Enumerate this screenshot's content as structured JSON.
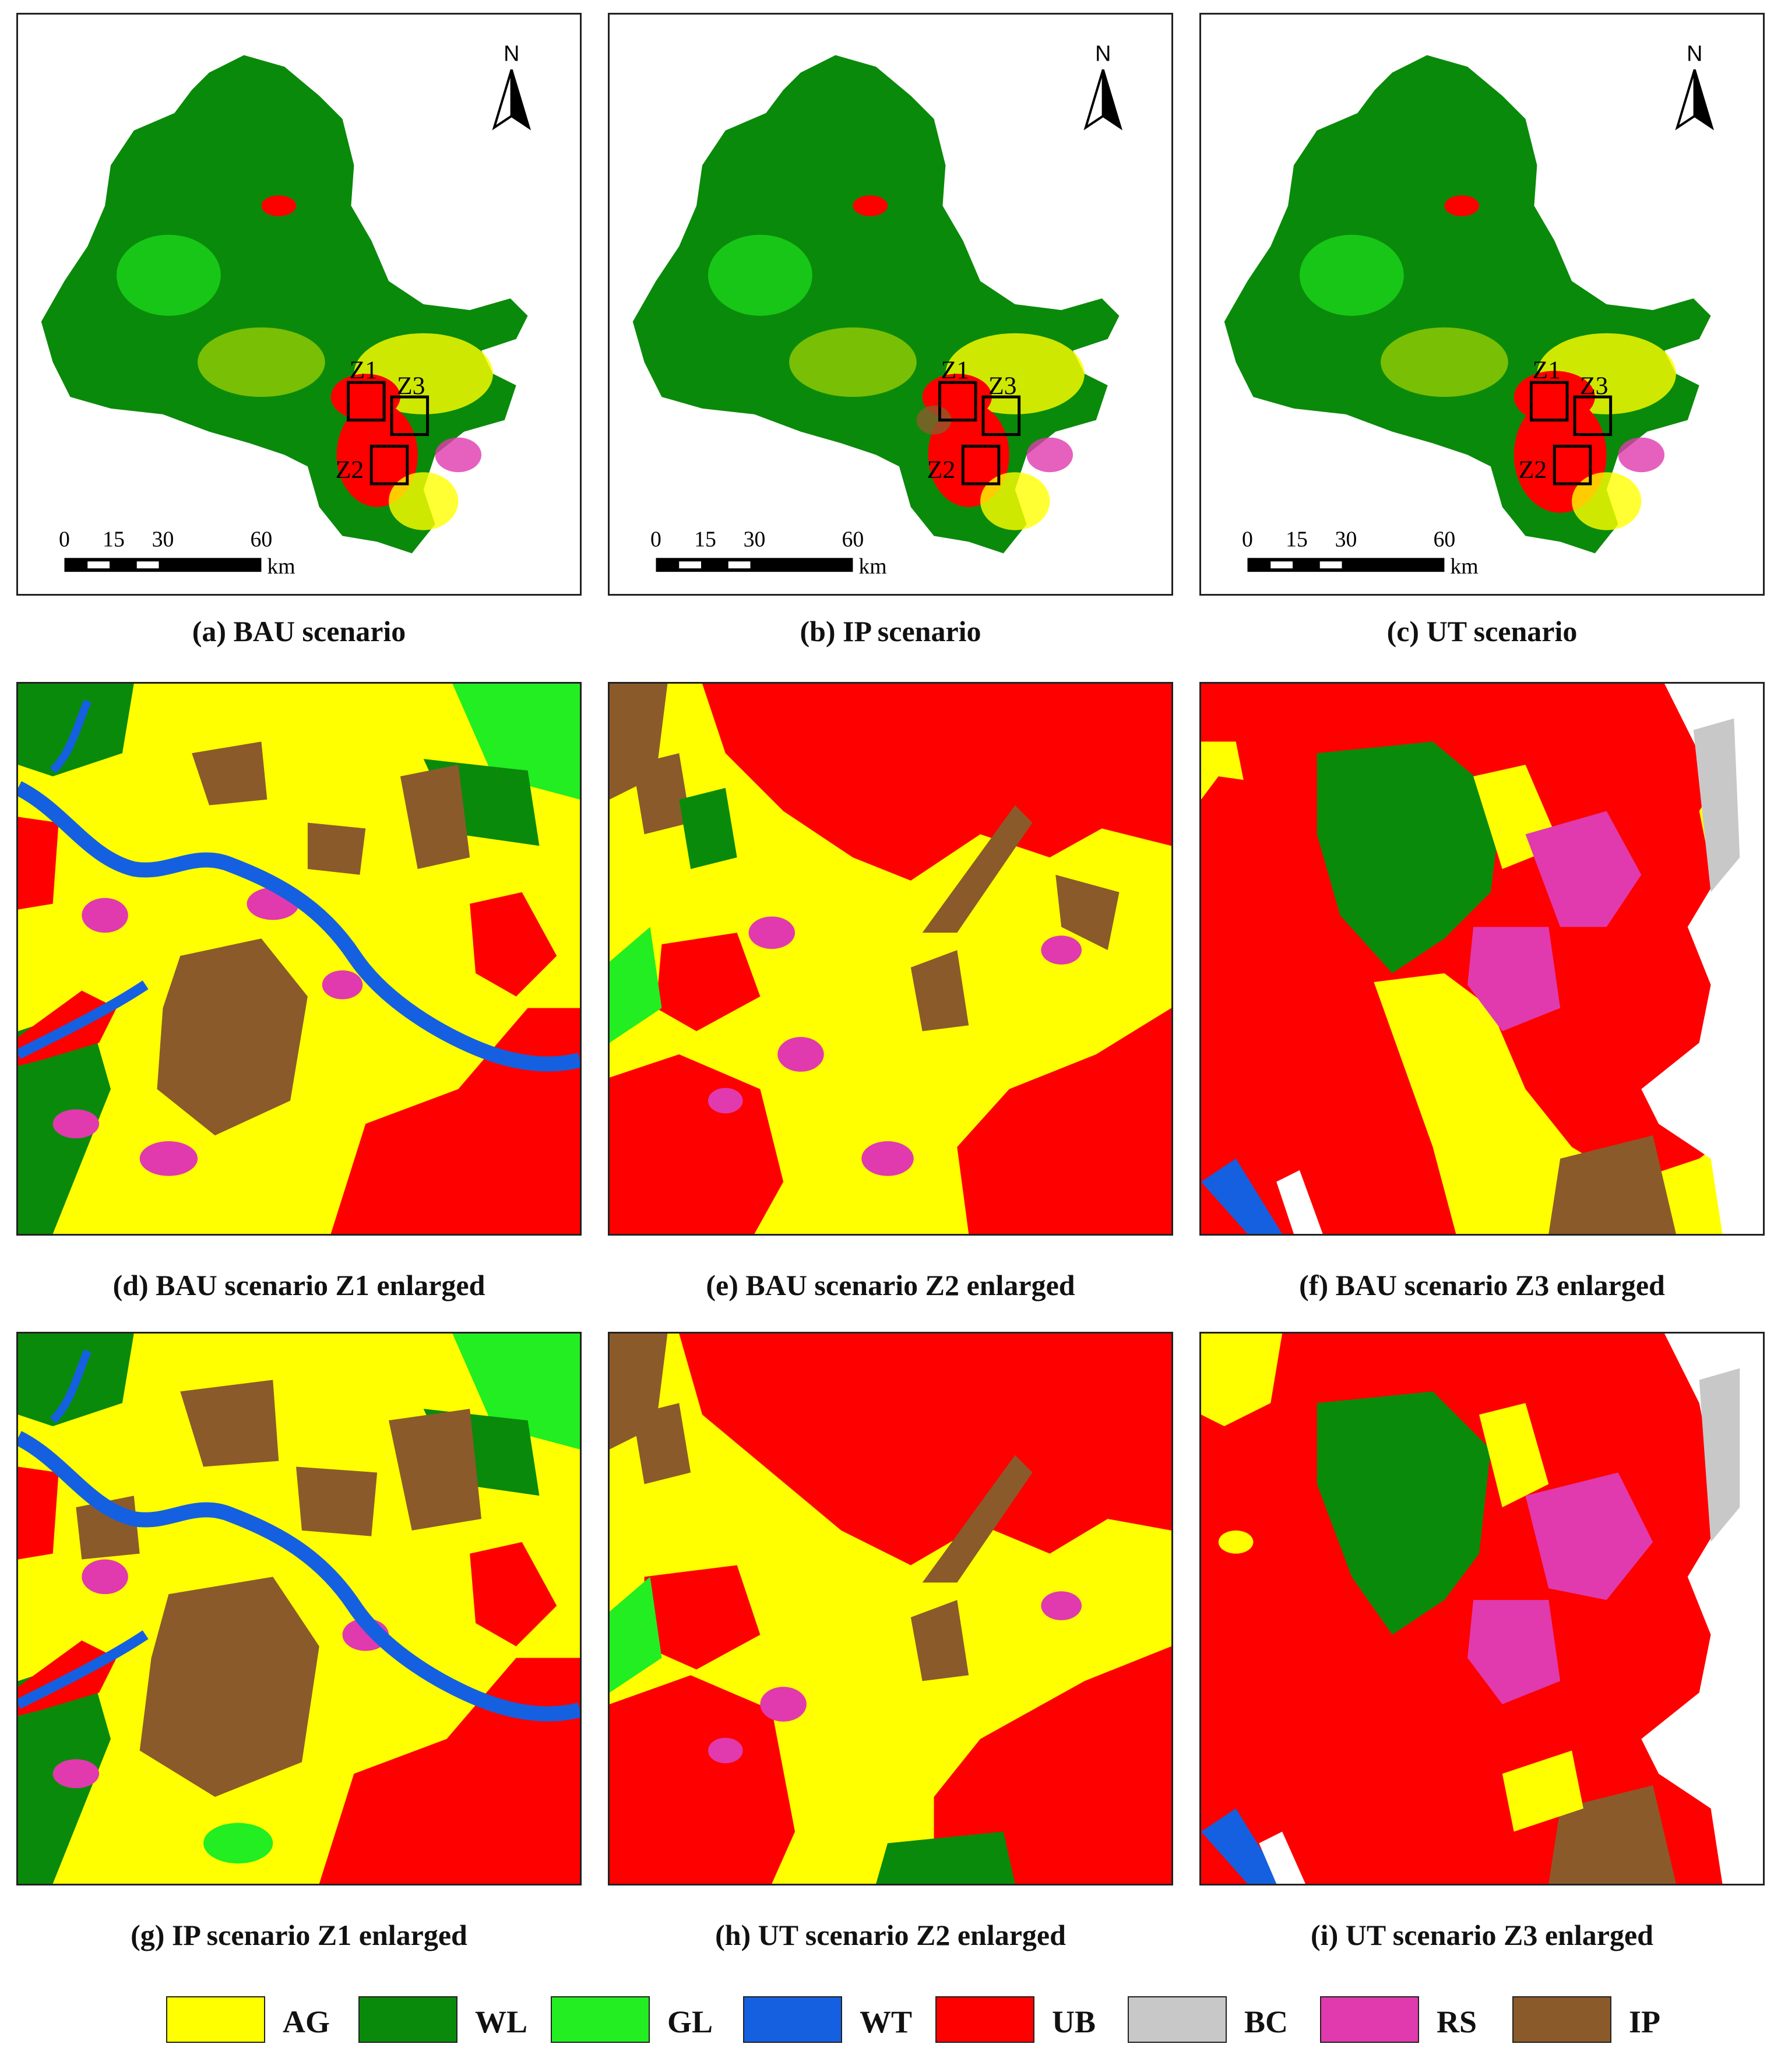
{
  "overview": {
    "north_label": "N",
    "zone_labels": [
      "Z1",
      "Z3",
      "Z2"
    ],
    "scale": {
      "ticks": [
        "0",
        "15",
        "30",
        "60"
      ],
      "unit": "km"
    }
  },
  "captions": [
    "(a) BAU scenario",
    "(b) IP scenario",
    "(c) UT scenario",
    "(d) BAU scenario Z1 enlarged",
    "(e) BAU scenario Z2 enlarged",
    "(f) BAU scenario Z3 enlarged",
    "(g) IP scenario Z1 enlarged",
    "(h) UT scenario Z2 enlarged",
    "(i) UT scenario Z3 enlarged"
  ],
  "legend": [
    {
      "code": "AG",
      "color": "#ffff00"
    },
    {
      "code": "WL",
      "color": "#0a8a0a"
    },
    {
      "code": "GL",
      "color": "#22ee22"
    },
    {
      "code": "WT",
      "color": "#1560e0"
    },
    {
      "code": "UB",
      "color": "#ff0000"
    },
    {
      "code": "BC",
      "color": "#c8c8c8"
    },
    {
      "code": "RS",
      "color": "#e03aae"
    },
    {
      "code": "IP",
      "color": "#8b5a2b"
    }
  ]
}
